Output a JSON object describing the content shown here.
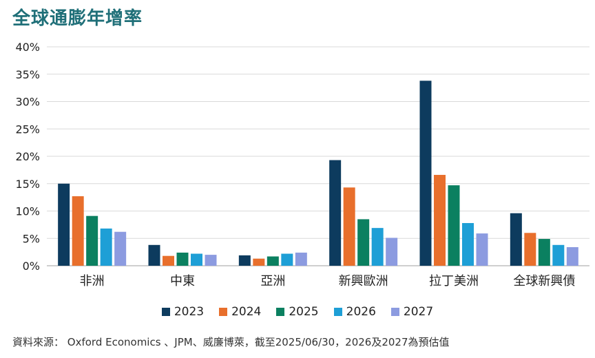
{
  "title": "全球通膨年增率",
  "source": "資料來源： Oxford Economics 、JPM、威廉博萊，截至2025/06/30，2026及2027為預估值",
  "colors": {
    "title": "#1f6f78",
    "gridline": "#d9d9d9",
    "axis": "#bfbfbf"
  },
  "chart_data": {
    "type": "bar",
    "title": "全球通膨年增率",
    "categories": [
      "非洲",
      "中東",
      "亞洲",
      "新興歐洲",
      "拉丁美洲",
      "全球新興債"
    ],
    "ylim": [
      0,
      40
    ],
    "yticks": [
      0,
      5,
      10,
      15,
      20,
      25,
      30,
      35,
      40
    ],
    "ytick_labels": [
      "0%",
      "5%",
      "10%",
      "15%",
      "20%",
      "25%",
      "30%",
      "35%",
      "40%"
    ],
    "grid": true,
    "legend_position": "bottom",
    "series": [
      {
        "name": "2023",
        "color": "#0d3b5e",
        "values": [
          15.0,
          3.8,
          1.9,
          19.3,
          33.8,
          9.6
        ]
      },
      {
        "name": "2024",
        "color": "#e86f2c",
        "values": [
          12.7,
          1.8,
          1.3,
          14.3,
          16.6,
          6.0
        ]
      },
      {
        "name": "2025",
        "color": "#0b8060",
        "values": [
          9.1,
          2.4,
          1.7,
          8.5,
          14.7,
          4.9
        ]
      },
      {
        "name": "2026",
        "color": "#1e9fd6",
        "values": [
          6.8,
          2.2,
          2.2,
          6.9,
          7.8,
          3.8
        ]
      },
      {
        "name": "2027",
        "color": "#8c9be0",
        "values": [
          6.2,
          2.0,
          2.4,
          5.1,
          5.9,
          3.4
        ]
      }
    ]
  }
}
